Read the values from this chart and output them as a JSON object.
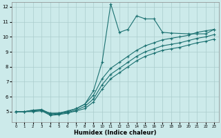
{
  "xlabel": "Humidex (Indice chaleur)",
  "ylabel": "",
  "background_color": "#cceaea",
  "grid_color": "#aacccc",
  "line_color": "#1a7070",
  "xlim": [
    -0.5,
    23.5
  ],
  "ylim": [
    4.3,
    12.3
  ],
  "xticks": [
    0,
    1,
    2,
    3,
    4,
    5,
    6,
    7,
    8,
    9,
    10,
    11,
    12,
    13,
    14,
    15,
    16,
    17,
    18,
    19,
    20,
    21,
    22,
    23
  ],
  "yticks": [
    5,
    6,
    7,
    8,
    9,
    10,
    11,
    12
  ],
  "lines": [
    {
      "x": [
        0,
        1,
        2,
        3,
        4,
        5,
        6,
        7,
        8,
        9,
        10,
        11,
        12,
        13,
        14,
        15,
        16,
        17,
        18,
        20,
        21,
        22,
        23
      ],
      "y": [
        5.0,
        5.0,
        5.1,
        5.1,
        4.9,
        4.9,
        5.0,
        5.2,
        5.5,
        6.4,
        8.3,
        12.2,
        10.3,
        10.5,
        11.4,
        11.2,
        11.2,
        10.3,
        10.25,
        10.2,
        10.2,
        10.2,
        10.5
      ]
    },
    {
      "x": [
        0,
        1,
        2,
        3,
        4,
        5,
        6,
        7,
        8,
        9,
        10,
        11,
        12,
        13,
        14,
        15,
        16,
        17,
        18,
        19,
        20,
        21,
        22,
        23
      ],
      "y": [
        5.0,
        5.0,
        5.1,
        5.15,
        4.85,
        4.9,
        5.05,
        5.2,
        5.5,
        6.1,
        7.2,
        7.9,
        8.3,
        8.7,
        9.1,
        9.4,
        9.6,
        9.8,
        9.9,
        10.0,
        10.1,
        10.3,
        10.4,
        10.5
      ]
    },
    {
      "x": [
        0,
        1,
        2,
        3,
        4,
        5,
        6,
        7,
        8,
        9,
        10,
        11,
        12,
        13,
        14,
        15,
        16,
        17,
        18,
        19,
        20,
        21,
        22,
        23
      ],
      "y": [
        5.0,
        5.0,
        5.05,
        5.1,
        4.8,
        4.85,
        4.95,
        5.1,
        5.35,
        5.85,
        6.8,
        7.5,
        7.9,
        8.3,
        8.7,
        9.0,
        9.2,
        9.4,
        9.5,
        9.6,
        9.75,
        9.9,
        10.0,
        10.15
      ]
    },
    {
      "x": [
        0,
        1,
        2,
        3,
        4,
        5,
        6,
        7,
        8,
        9,
        10,
        11,
        12,
        13,
        14,
        15,
        16,
        17,
        18,
        19,
        20,
        21,
        22,
        23
      ],
      "y": [
        5.0,
        5.0,
        5.0,
        5.05,
        4.75,
        4.8,
        4.9,
        5.05,
        5.2,
        5.65,
        6.5,
        7.2,
        7.6,
        8.0,
        8.4,
        8.7,
        8.9,
        9.1,
        9.2,
        9.3,
        9.45,
        9.6,
        9.7,
        9.85
      ]
    }
  ]
}
